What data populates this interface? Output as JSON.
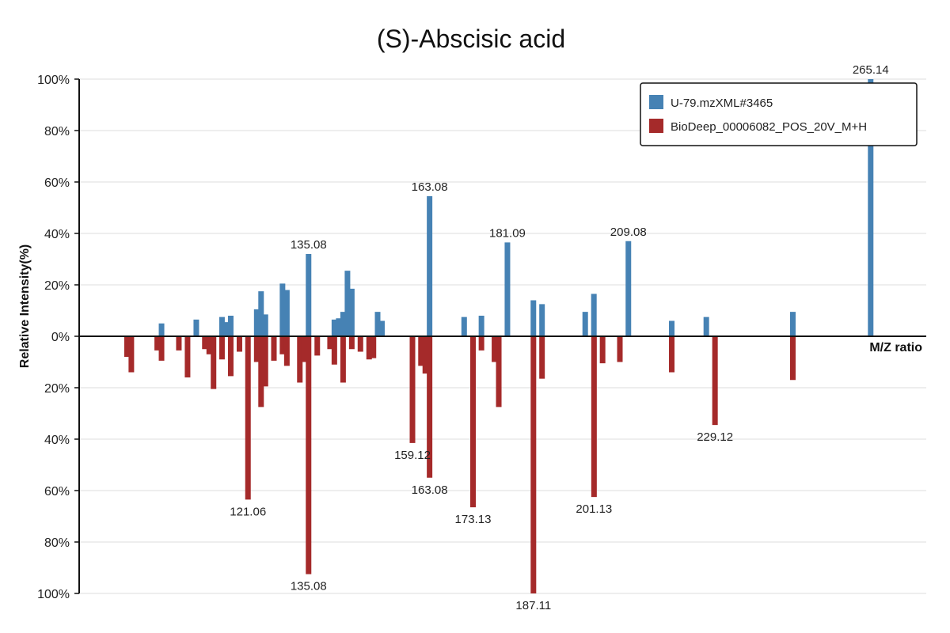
{
  "chart_data": {
    "type": "bar",
    "title": "(S)-Abscisic acid",
    "xlabel": "M/Z ratio",
    "ylabel": "Relative Intensity(%)",
    "ylim_top": [
      0,
      100
    ],
    "ylim_bottom": [
      0,
      100
    ],
    "y_ticks_top": [
      "0%",
      "20%",
      "40%",
      "60%",
      "80%",
      "100%"
    ],
    "y_ticks_bottom": [
      "20%",
      "40%",
      "60%",
      "80%",
      "100%"
    ],
    "xlim": [
      82,
      278
    ],
    "grid": true,
    "legend_position": "top-right",
    "colors": {
      "top": "#4682b4",
      "bottom": "#a52a2a"
    },
    "series": [
      {
        "name": "U-79.mzXML#3465",
        "direction": "up",
        "peaks": [
          {
            "mz": 101.06,
            "value": 5
          },
          {
            "mz": 109.1,
            "value": 6.5
          },
          {
            "mz": 115.05,
            "value": 7.5
          },
          {
            "mz": 116.05,
            "value": 5.5
          },
          {
            "mz": 117.07,
            "value": 8
          },
          {
            "mz": 123.09,
            "value": 10.5
          },
          {
            "mz": 124.09,
            "value": 17.5
          },
          {
            "mz": 125.09,
            "value": 8.5
          },
          {
            "mz": 129.05,
            "value": 20.5
          },
          {
            "mz": 130.06,
            "value": 18
          },
          {
            "mz": 135.08,
            "value": 32,
            "label": "135.08"
          },
          {
            "mz": 141.05,
            "value": 6.5
          },
          {
            "mz": 142.06,
            "value": 7
          },
          {
            "mz": 143.07,
            "value": 9.5
          },
          {
            "mz": 144.08,
            "value": 25.5
          },
          {
            "mz": 145.08,
            "value": 18.5
          },
          {
            "mz": 151.06,
            "value": 9.5
          },
          {
            "mz": 152.06,
            "value": 6
          },
          {
            "mz": 163.08,
            "value": 54.5,
            "label": "163.08"
          },
          {
            "mz": 171.08,
            "value": 7.5
          },
          {
            "mz": 175.08,
            "value": 8
          },
          {
            "mz": 181.09,
            "value": 36.5,
            "label": "181.09"
          },
          {
            "mz": 187.1,
            "value": 14
          },
          {
            "mz": 189.1,
            "value": 12.5
          },
          {
            "mz": 199.09,
            "value": 9.5
          },
          {
            "mz": 201.1,
            "value": 16.5
          },
          {
            "mz": 209.08,
            "value": 37,
            "label": "209.08"
          },
          {
            "mz": 219.11,
            "value": 6
          },
          {
            "mz": 227.11,
            "value": 7.5
          },
          {
            "mz": 247.13,
            "value": 9.5
          },
          {
            "mz": 265.14,
            "value": 100,
            "label": "265.14"
          }
        ]
      },
      {
        "name": "BioDeep_00006082_POS_20V_M+H",
        "direction": "down",
        "peaks": [
          {
            "mz": 93.07,
            "value": 8
          },
          {
            "mz": 94.07,
            "value": 14
          },
          {
            "mz": 100.06,
            "value": 5.5
          },
          {
            "mz": 101.06,
            "value": 9.5
          },
          {
            "mz": 105.07,
            "value": 5.5
          },
          {
            "mz": 107.08,
            "value": 16
          },
          {
            "mz": 111.08,
            "value": 5
          },
          {
            "mz": 112.09,
            "value": 7
          },
          {
            "mz": 113.09,
            "value": 20.5
          },
          {
            "mz": 115.05,
            "value": 9
          },
          {
            "mz": 117.07,
            "value": 15.5
          },
          {
            "mz": 119.09,
            "value": 6
          },
          {
            "mz": 123.09,
            "value": 10
          },
          {
            "mz": 124.09,
            "value": 27.5
          },
          {
            "mz": 125.09,
            "value": 19.5
          },
          {
            "mz": 127.06,
            "value": 9.5
          },
          {
            "mz": 129.05,
            "value": 7
          },
          {
            "mz": 130.06,
            "value": 11.5
          },
          {
            "mz": 121.06,
            "value": 63.5,
            "label": "121.06"
          },
          {
            "mz": 133.06,
            "value": 18
          },
          {
            "mz": 134.07,
            "value": 10
          },
          {
            "mz": 135.08,
            "value": 92.5,
            "label": "135.08"
          },
          {
            "mz": 137.09,
            "value": 7.5
          },
          {
            "mz": 140.05,
            "value": 5
          },
          {
            "mz": 141.05,
            "value": 11
          },
          {
            "mz": 143.07,
            "value": 18
          },
          {
            "mz": 145.08,
            "value": 5
          },
          {
            "mz": 147.08,
            "value": 6
          },
          {
            "mz": 149.09,
            "value": 9
          },
          {
            "mz": 150.09,
            "value": 8.5
          },
          {
            "mz": 159.12,
            "value": 41.5,
            "label": "159.12"
          },
          {
            "mz": 161.09,
            "value": 11.5
          },
          {
            "mz": 162.09,
            "value": 14.5
          },
          {
            "mz": 163.08,
            "value": 55,
            "label": "163.08"
          },
          {
            "mz": 173.13,
            "value": 66.5,
            "label": "173.13"
          },
          {
            "mz": 175.08,
            "value": 5.5
          },
          {
            "mz": 178.09,
            "value": 10
          },
          {
            "mz": 179.09,
            "value": 27.5
          },
          {
            "mz": 187.11,
            "value": 100,
            "label": "187.11"
          },
          {
            "mz": 189.1,
            "value": 16.5
          },
          {
            "mz": 201.13,
            "value": 62.5,
            "label": "201.13"
          },
          {
            "mz": 203.11,
            "value": 10.5
          },
          {
            "mz": 207.11,
            "value": 10
          },
          {
            "mz": 219.11,
            "value": 14
          },
          {
            "mz": 229.12,
            "value": 34.5,
            "label": "229.12"
          },
          {
            "mz": 247.13,
            "value": 17
          }
        ]
      }
    ]
  }
}
